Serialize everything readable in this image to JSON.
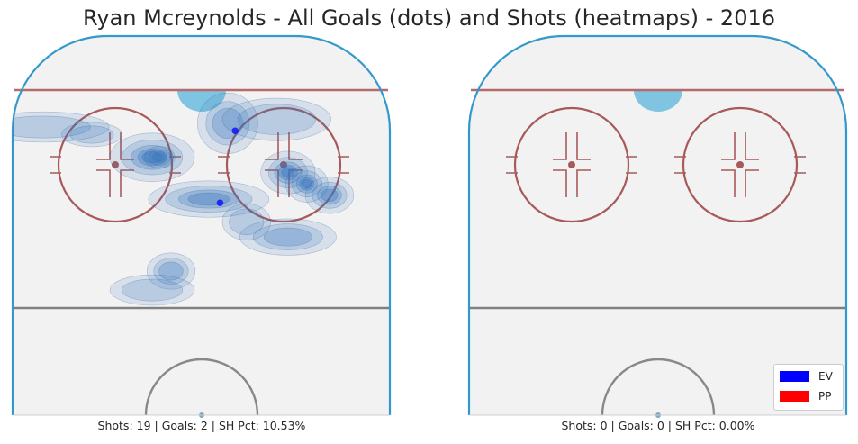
{
  "title": "Ryan Mcreynolds - All Goals (dots) and Shots (heatmaps) - 2016",
  "colors": {
    "ice": "#f2f2f2",
    "boards": "#3399cc",
    "blue_line": "#999999",
    "red_line": "#b36b6b",
    "circle": "#a85a5a",
    "crease": "#7fc4e0",
    "ev": "#0000ff",
    "pp": "#ff0000",
    "heat": "#3a78c0"
  },
  "legend": {
    "placement": "bottom-right",
    "items": [
      {
        "label": "EV",
        "color": "#0000ff"
      },
      {
        "label": "PP",
        "color": "#ff0000"
      }
    ]
  },
  "chart_data": [
    {
      "type": "heatmap",
      "caption": "Shots: 19 | Goals: 2 | SH Pct: 10.53%",
      "shots": 19,
      "goals_count": 2,
      "sh_pct": 10.53,
      "goals": [
        {
          "x": 0.59,
          "y": 0.25,
          "type": "EV"
        },
        {
          "x": 0.55,
          "y": 0.44,
          "type": "EV"
        }
      ],
      "shot_density": [
        {
          "x": 0.08,
          "y": 0.24,
          "sx": 0.11,
          "sy": 0.025,
          "w": 0.35
        },
        {
          "x": 0.21,
          "y": 0.26,
          "sx": 0.05,
          "sy": 0.02,
          "w": 0.3
        },
        {
          "x": 0.37,
          "y": 0.32,
          "sx": 0.07,
          "sy": 0.04,
          "w": 0.9
        },
        {
          "x": 0.39,
          "y": 0.32,
          "sx": 0.025,
          "sy": 0.018,
          "w": 0.8
        },
        {
          "x": 0.52,
          "y": 0.43,
          "sx": 0.1,
          "sy": 0.03,
          "w": 0.7
        },
        {
          "x": 0.57,
          "y": 0.23,
          "sx": 0.05,
          "sy": 0.05,
          "w": 0.55
        },
        {
          "x": 0.7,
          "y": 0.22,
          "sx": 0.09,
          "sy": 0.035,
          "w": 0.4
        },
        {
          "x": 0.73,
          "y": 0.36,
          "sx": 0.045,
          "sy": 0.035,
          "w": 1.0
        },
        {
          "x": 0.78,
          "y": 0.39,
          "sx": 0.035,
          "sy": 0.03,
          "w": 1.0
        },
        {
          "x": 0.84,
          "y": 0.42,
          "sx": 0.04,
          "sy": 0.03,
          "w": 0.7
        },
        {
          "x": 0.73,
          "y": 0.53,
          "sx": 0.08,
          "sy": 0.03,
          "w": 0.5
        },
        {
          "x": 0.62,
          "y": 0.49,
          "sx": 0.04,
          "sy": 0.03,
          "w": 0.35
        },
        {
          "x": 0.42,
          "y": 0.62,
          "sx": 0.04,
          "sy": 0.03,
          "w": 0.45
        },
        {
          "x": 0.37,
          "y": 0.67,
          "sx": 0.07,
          "sy": 0.025,
          "w": 0.35
        }
      ]
    },
    {
      "type": "heatmap",
      "caption": "Shots: 0 | Goals: 0 | SH Pct: 0.00%",
      "shots": 0,
      "goals_count": 0,
      "sh_pct": 0.0,
      "goals": [],
      "shot_density": []
    }
  ]
}
